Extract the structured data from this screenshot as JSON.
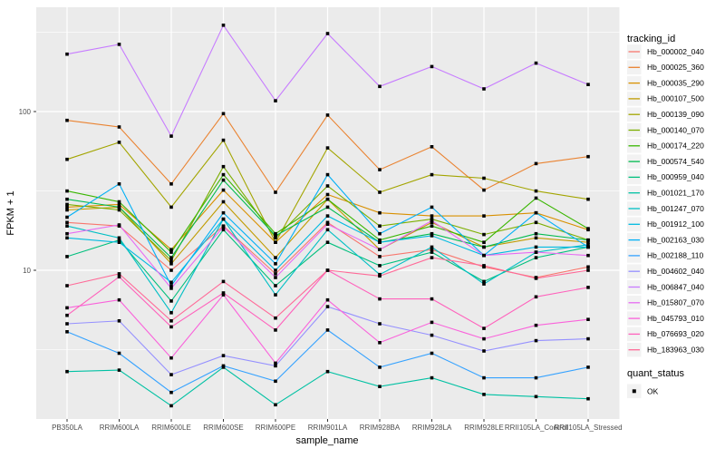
{
  "chart_data": {
    "type": "line",
    "title": "",
    "xlabel": "sample_name",
    "ylabel": "FPKM + 1",
    "yscale": "log10",
    "ylim": [
      1.35,
      450
    ],
    "y_ticks": [
      10,
      100
    ],
    "y_minor": [
      3.16,
      31.6,
      316
    ],
    "grid": "on",
    "legend_position": "right",
    "legend_title": "tracking_id",
    "shape_legend": {
      "title": "quant_status",
      "label": "OK",
      "marker": "filled-square",
      "marker_color": "#000000"
    },
    "point_marker": {
      "shape": "square",
      "color": "#000000"
    },
    "categories": [
      "PB350LA",
      "RRIM600LA",
      "RRIM600LE",
      "RRIM600SE",
      "RRIM600PE",
      "RRIM901LA",
      "RRIM928BA",
      "RRIM928LA",
      "RRIM928LE",
      "RRII105LA_Control",
      "RRII105LA_Stressed"
    ],
    "series": [
      {
        "name": "Hb_000002_040",
        "color": "#F8766D",
        "values": [
          20,
          19,
          10,
          19,
          9.5,
          20,
          12.2,
          13.5,
          10.5,
          9,
          10.5
        ]
      },
      {
        "name": "Hb_000025_360",
        "color": "#EA8331",
        "values": [
          88,
          80,
          35,
          97,
          31,
          95,
          43,
          60,
          32,
          47,
          52
        ]
      },
      {
        "name": "Hb_000035_290",
        "color": "#D89000",
        "values": [
          25,
          26,
          13.5,
          32,
          15,
          30,
          23,
          22,
          22,
          23,
          18
        ]
      },
      {
        "name": "Hb_000107_500",
        "color": "#C09B00",
        "values": [
          24,
          25,
          11,
          27,
          12,
          28,
          13.5,
          20,
          14,
          16,
          15
        ]
      },
      {
        "name": "Hb_000139_090",
        "color": "#A3A500",
        "values": [
          50,
          64,
          25,
          66,
          15,
          59,
          31,
          40,
          38,
          31.6,
          28
        ]
      },
      {
        "name": "Hb_000140_070",
        "color": "#7CAE00",
        "values": [
          26,
          24,
          11.5,
          45,
          16,
          34,
          19,
          21,
          16.8,
          20,
          15.5
        ]
      },
      {
        "name": "Hb_000174_220",
        "color": "#39B600",
        "values": [
          31.6,
          27,
          13,
          40,
          17,
          28,
          15.5,
          19,
          15,
          28.5,
          18.3
        ]
      },
      {
        "name": "Hb_000574_540",
        "color": "#00BB4E",
        "values": [
          28,
          25,
          12,
          37,
          16.5,
          25,
          15,
          17,
          14,
          17,
          15.5
        ]
      },
      {
        "name": "Hb_000959_040",
        "color": "#00BF7D",
        "values": [
          12.2,
          15.5,
          6.4,
          18,
          8,
          15,
          10.7,
          13,
          8.5,
          12,
          14
        ]
      },
      {
        "name": "Hb_001021_170",
        "color": "#00C1A3",
        "values": [
          2.3,
          2.35,
          1.4,
          2.45,
          1.42,
          2.3,
          1.85,
          2.1,
          1.65,
          1.6,
          1.55
        ]
      },
      {
        "name": "Hb_001247_070",
        "color": "#00BFC4",
        "values": [
          19,
          16,
          5.4,
          21,
          7,
          18,
          9.4,
          14,
          8.2,
          13,
          14.5
        ]
      },
      {
        "name": "Hb_001912_100",
        "color": "#00BAE0",
        "values": [
          16,
          15,
          8.4,
          21,
          10,
          22,
          15,
          16.5,
          12.4,
          14,
          14
        ]
      },
      {
        "name": "Hb_002163_030",
        "color": "#00B0F6",
        "values": [
          21.6,
          35,
          8,
          23,
          11,
          40,
          17,
          25,
          12.4,
          23,
          14
        ]
      },
      {
        "name": "Hb_002188_110",
        "color": "#35A2FF",
        "values": [
          4.1,
          3,
          1.7,
          2.5,
          2,
          4.2,
          2.45,
          3,
          2.1,
          2.1,
          2.45
        ]
      },
      {
        "name": "Hb_004602_040",
        "color": "#9590FF",
        "values": [
          4.6,
          4.8,
          2.2,
          2.9,
          2.5,
          5.9,
          4.6,
          3.9,
          3.1,
          3.6,
          3.7
        ]
      },
      {
        "name": "Hb_006847_040",
        "color": "#C77CFF",
        "values": [
          230,
          265,
          70,
          350,
          117,
          310,
          144,
          192,
          139,
          202,
          148
        ]
      },
      {
        "name": "Hb_015807_070",
        "color": "#E76BF3",
        "values": [
          17,
          19.3,
          7.7,
          18.8,
          9,
          19.5,
          13.5,
          20.5,
          12.4,
          13,
          12.4
        ]
      },
      {
        "name": "Hb_045793_010",
        "color": "#FA62DB",
        "values": [
          5.8,
          6.5,
          2.8,
          7,
          2.6,
          6.5,
          3.5,
          4.7,
          3.7,
          4.5,
          4.9
        ]
      },
      {
        "name": "Hb_076693_020",
        "color": "#FF62BC",
        "values": [
          5.2,
          9.1,
          4.4,
          7.2,
          4.2,
          10,
          6.6,
          6.6,
          4.3,
          6.8,
          7.8
        ]
      },
      {
        "name": "Hb_183963_030",
        "color": "#FF6A98",
        "values": [
          8,
          9.5,
          4.8,
          8.5,
          5,
          10,
          9.2,
          12,
          10.7,
          8.9,
          10
        ]
      }
    ]
  },
  "theme": {
    "panel_bg": "#EBEBEB",
    "grid_color": "#FFFFFF",
    "tick_color": "#333333",
    "tick_label_color": "#4D4D4D",
    "legend_key_bg": "#F2F2F2",
    "point_color": "#000000"
  }
}
